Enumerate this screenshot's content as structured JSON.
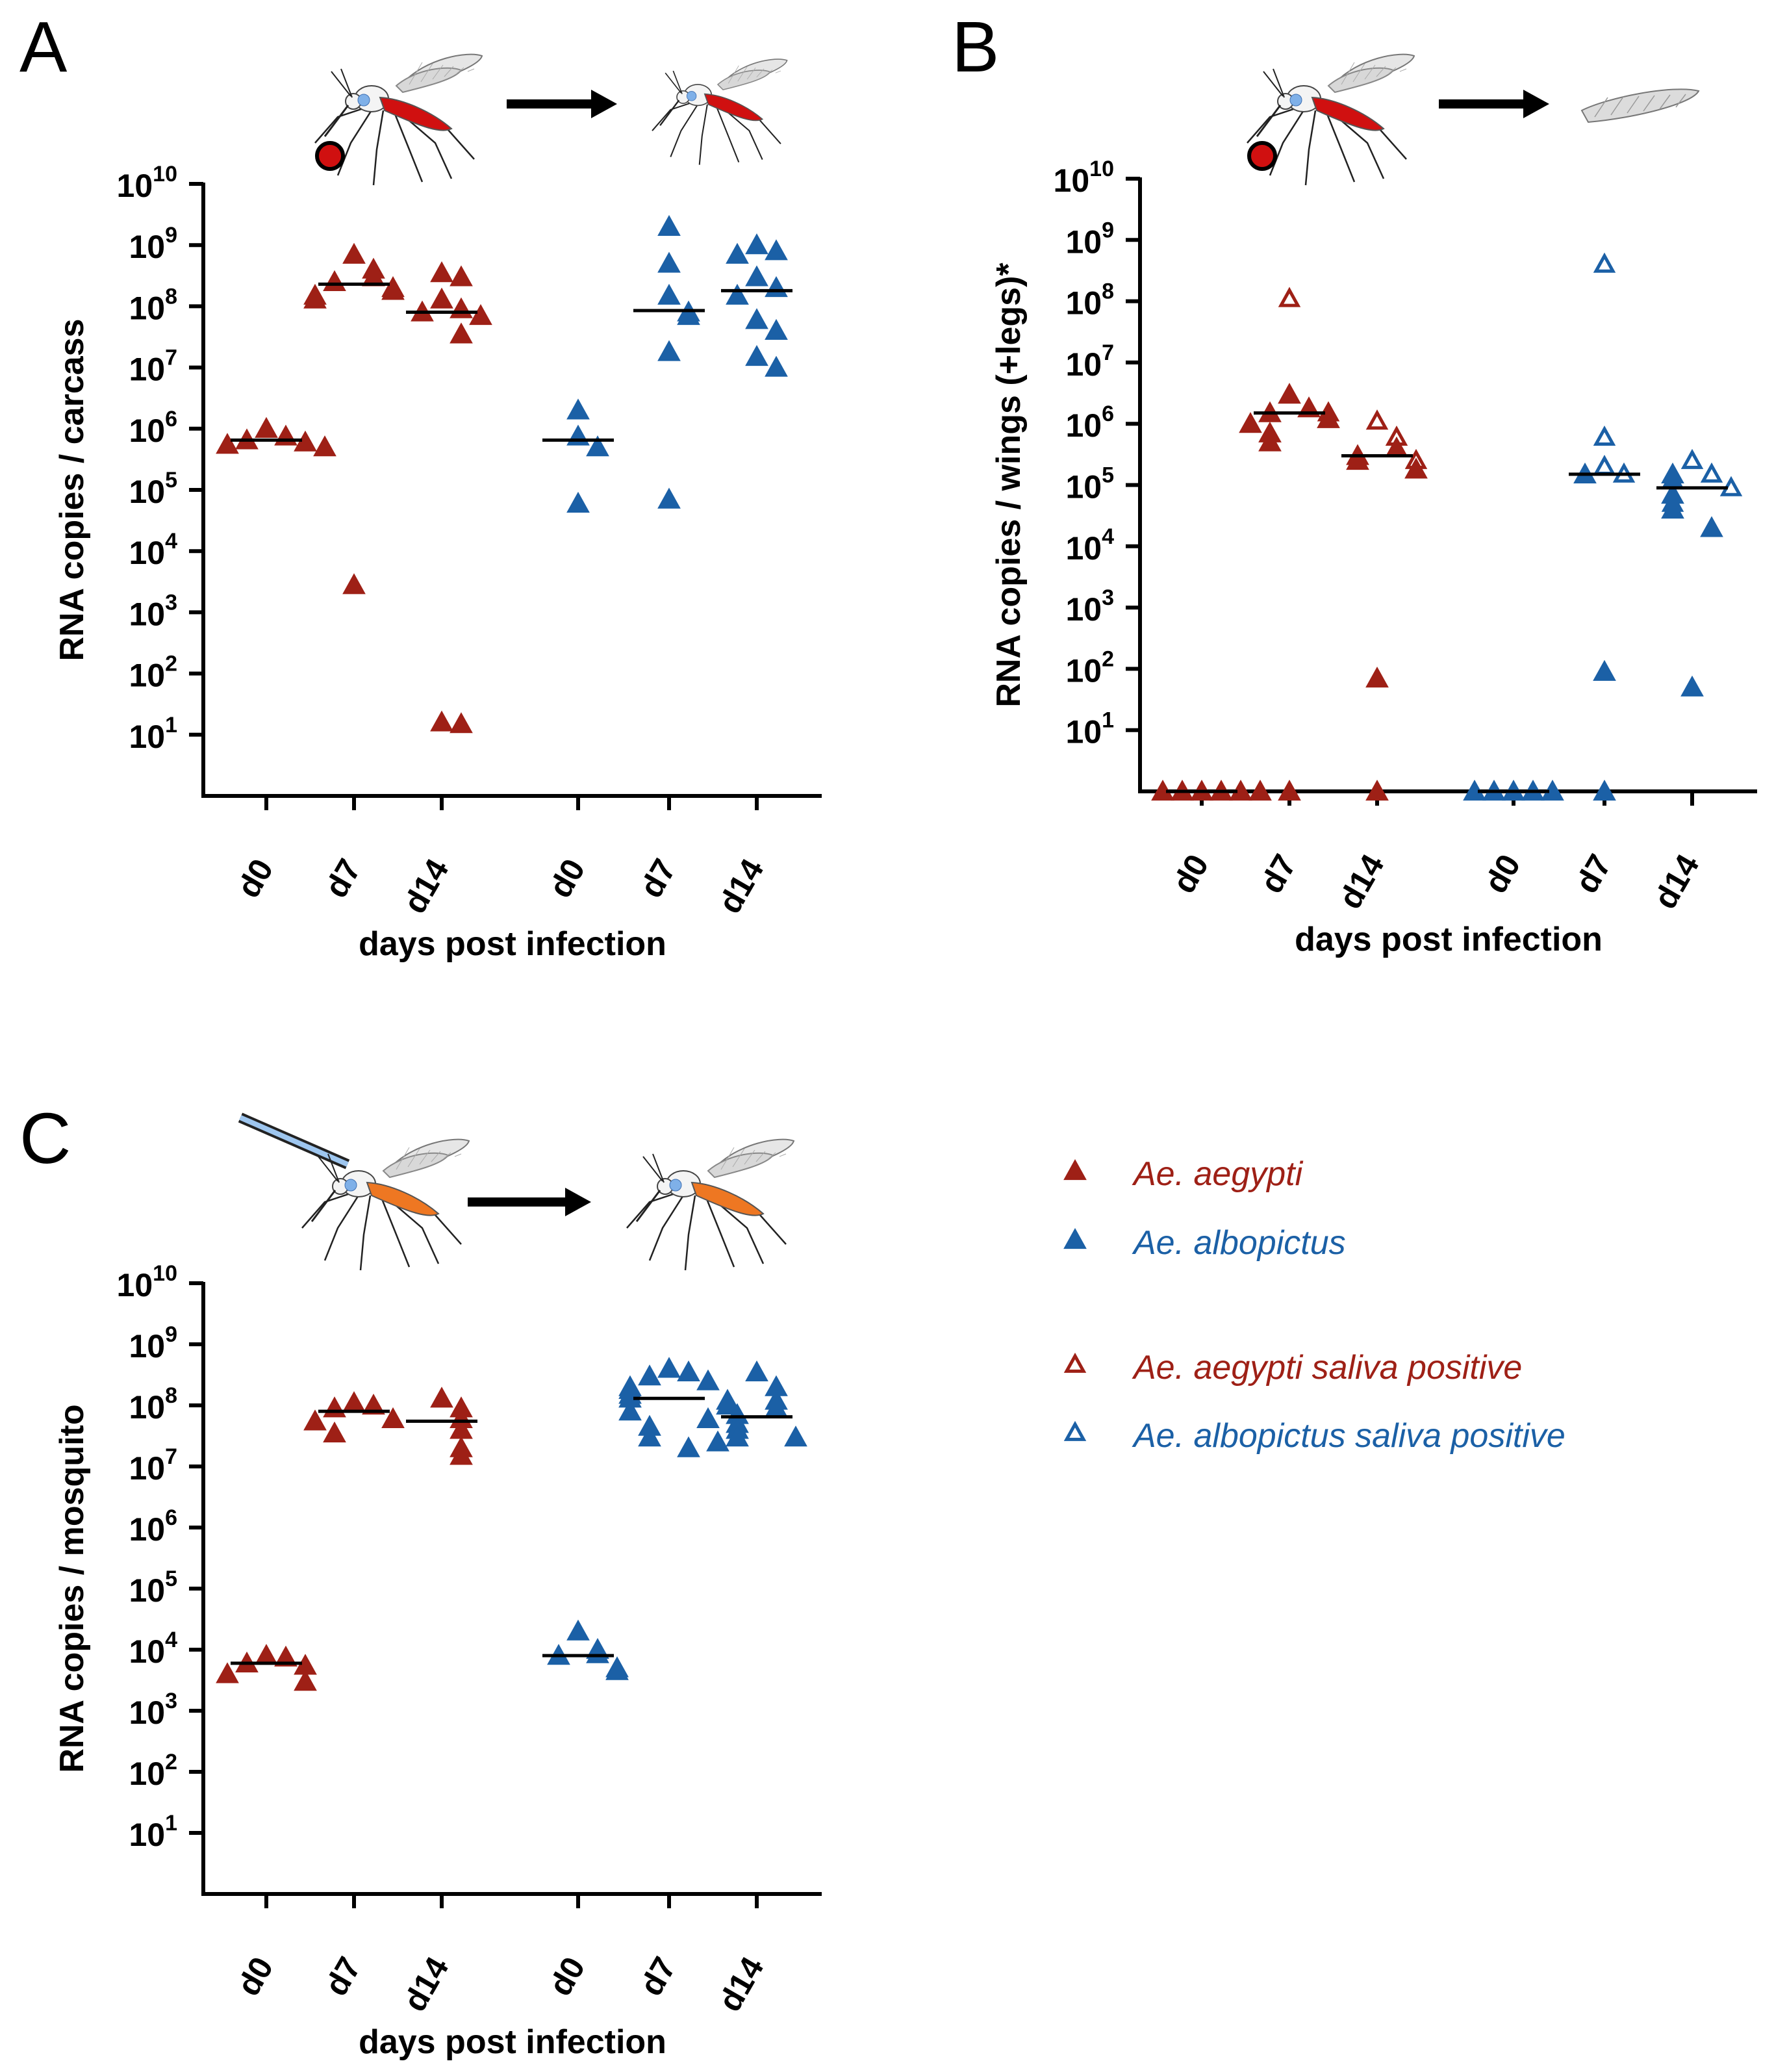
{
  "colors": {
    "aegypti": "#9e2016",
    "albopictus": "#1b60a6",
    "axis": "#000000",
    "median": "#000000",
    "blood": "#d01010",
    "injection_orange": "#ee7722"
  },
  "legend": {
    "items": [
      {
        "label": "Ae. aegypti",
        "species": "aegypti",
        "filled": true
      },
      {
        "label": "Ae. albopictus",
        "species": "albopictus",
        "filled": true
      },
      {
        "label": "Ae. aegypti saliva positive",
        "species": "aegypti",
        "filled": false
      },
      {
        "label": "Ae. albopictus saliva positive",
        "species": "albopictus",
        "filled": false
      }
    ]
  },
  "chart_data": [
    {
      "type": "scatter",
      "panel_label": "A",
      "xlabel": "days post infection",
      "ylabel": "RNA copies / carcass",
      "y_scale": "log10",
      "ylim": [
        1,
        10000000000.0
      ],
      "y_tick_base": "10",
      "y_tick_exponents": [
        "1",
        "2",
        "3",
        "4",
        "5",
        "6",
        "7",
        "8",
        "9",
        "10"
      ],
      "illustration": "bloodfed-to-carcass",
      "groups": [
        {
          "x_label": "d0",
          "species": "aegypti",
          "median": 650000.0,
          "points": [
            {
              "y": 1000000.0,
              "f": 1
            },
            {
              "y": 750000.0,
              "f": 1
            },
            {
              "y": 650000.0,
              "f": 1
            },
            {
              "y": 600000.0,
              "f": 1
            },
            {
              "y": 550000.0,
              "f": 1
            },
            {
              "y": 500000.0,
              "f": 1
            }
          ]
        },
        {
          "x_label": "d7",
          "species": "aegypti",
          "median": 230000000.0,
          "points": [
            {
              "y": 700000000.0,
              "f": 1
            },
            {
              "y": 400000000.0,
              "f": 1
            },
            {
              "y": 300000000.0,
              "f": 1
            },
            {
              "y": 250000000.0,
              "f": 1
            },
            {
              "y": 200000000.0,
              "f": 1
            },
            {
              "y": 180000000.0,
              "f": 1
            },
            {
              "y": 150000000.0,
              "f": 1
            },
            {
              "y": 130000000.0,
              "f": 1
            },
            {
              "y": 2800.0,
              "f": 1
            }
          ]
        },
        {
          "x_label": "d14",
          "species": "aegypti",
          "median": 80000000.0,
          "points": [
            {
              "y": 350000000.0,
              "f": 1
            },
            {
              "y": 300000000.0,
              "f": 1
            },
            {
              "y": 130000000.0,
              "f": 1
            },
            {
              "y": 90000000.0,
              "f": 1
            },
            {
              "y": 80000000.0,
              "f": 1
            },
            {
              "y": 70000000.0,
              "f": 1
            },
            {
              "y": 35000000.0,
              "f": 1
            },
            {
              "y": 16,
              "f": 1
            },
            {
              "y": 15,
              "f": 1
            }
          ]
        },
        {
          "x_label": "d0",
          "species": "albopictus",
          "median": 650000.0,
          "points": [
            {
              "y": 2000000.0,
              "f": 1
            },
            {
              "y": 750000.0,
              "f": 1
            },
            {
              "y": 500000.0,
              "f": 1
            },
            {
              "y": 60000.0,
              "f": 1
            }
          ]
        },
        {
          "x_label": "d7",
          "species": "albopictus",
          "median": 85000000.0,
          "points": [
            {
              "y": 2000000000.0,
              "f": 1
            },
            {
              "y": 500000000.0,
              "f": 1
            },
            {
              "y": 150000000.0,
              "f": 1
            },
            {
              "y": 80000000.0,
              "f": 1
            },
            {
              "y": 70000000.0,
              "f": 1
            },
            {
              "y": 18000000.0,
              "f": 1
            },
            {
              "y": 70000.0,
              "f": 1
            }
          ]
        },
        {
          "x_label": "d14",
          "species": "albopictus",
          "median": 180000000.0,
          "points": [
            {
              "y": 1000000000.0,
              "f": 1
            },
            {
              "y": 800000000.0,
              "f": 1
            },
            {
              "y": 700000000.0,
              "f": 1
            },
            {
              "y": 300000000.0,
              "f": 1
            },
            {
              "y": 200000000.0,
              "f": 1
            },
            {
              "y": 150000000.0,
              "f": 1
            },
            {
              "y": 60000000.0,
              "f": 1
            },
            {
              "y": 40000000.0,
              "f": 1
            },
            {
              "y": 15000000.0,
              "f": 1
            },
            {
              "y": 10000000.0,
              "f": 1
            }
          ]
        }
      ]
    },
    {
      "type": "scatter",
      "panel_label": "B",
      "xlabel": "days post infection",
      "ylabel": "RNA copies / wings (+legs)*",
      "y_scale": "log10",
      "ylim": [
        1,
        10000000000.0
      ],
      "y_tick_base": "10",
      "y_tick_exponents": [
        "1",
        "2",
        "3",
        "4",
        "5",
        "6",
        "7",
        "8",
        "9",
        "10"
      ],
      "illustration": "bloodfed-to-wing",
      "groups": [
        {
          "x_label": "d0",
          "species": "aegypti",
          "median": 1,
          "points": [
            {
              "y": 1,
              "f": 1
            },
            {
              "y": 1,
              "f": 1
            },
            {
              "y": 1,
              "f": 1
            },
            {
              "y": 1,
              "f": 1
            },
            {
              "y": 1,
              "f": 1
            },
            {
              "y": 1,
              "f": 1
            }
          ]
        },
        {
          "x_label": "d7",
          "species": "aegypti",
          "median": 1500000.0,
          "points": [
            {
              "y": 110000000.0,
              "f": 0
            },
            {
              "y": 3000000.0,
              "f": 1
            },
            {
              "y": 1800000.0,
              "f": 1
            },
            {
              "y": 1500000.0,
              "f": 1
            },
            {
              "y": 1500000.0,
              "f": 0
            },
            {
              "y": 1200000.0,
              "f": 1
            },
            {
              "y": 1000000.0,
              "f": 1
            },
            {
              "y": 700000.0,
              "f": 1
            },
            {
              "y": 500000.0,
              "f": 1
            },
            {
              "y": 1,
              "f": 1
            }
          ]
        },
        {
          "x_label": "d14",
          "species": "aegypti",
          "median": 300000.0,
          "points": [
            {
              "y": 1100000.0,
              "f": 0
            },
            {
              "y": 600000.0,
              "f": 0
            },
            {
              "y": 400000.0,
              "f": 1
            },
            {
              "y": 300000.0,
              "f": 1
            },
            {
              "y": 250000.0,
              "f": 1
            },
            {
              "y": 250000.0,
              "f": 0
            },
            {
              "y": 180000.0,
              "f": 1
            },
            {
              "y": 70,
              "f": 1
            },
            {
              "y": 1,
              "f": 1
            }
          ]
        },
        {
          "x_label": "d0",
          "species": "albopictus",
          "median": 1,
          "points": [
            {
              "y": 1,
              "f": 1
            },
            {
              "y": 1,
              "f": 1
            },
            {
              "y": 1,
              "f": 1
            },
            {
              "y": 1,
              "f": 1
            },
            {
              "y": 1,
              "f": 1
            }
          ]
        },
        {
          "x_label": "d7",
          "species": "albopictus",
          "median": 150000.0,
          "points": [
            {
              "y": 400000000.0,
              "f": 0
            },
            {
              "y": 600000.0,
              "f": 0
            },
            {
              "y": 200000.0,
              "f": 0
            },
            {
              "y": 150000.0,
              "f": 0
            },
            {
              "y": 150000.0,
              "f": 1
            },
            {
              "y": 90,
              "f": 1
            },
            {
              "y": 1,
              "f": 1
            }
          ]
        },
        {
          "x_label": "d14",
          "species": "albopictus",
          "median": 90000.0,
          "points": [
            {
              "y": 250000.0,
              "f": 0
            },
            {
              "y": 150000.0,
              "f": 0
            },
            {
              "y": 150000.0,
              "f": 1
            },
            {
              "y": 120000.0,
              "f": 1
            },
            {
              "y": 90000.0,
              "f": 0
            },
            {
              "y": 70000.0,
              "f": 1
            },
            {
              "y": 50000.0,
              "f": 0
            },
            {
              "y": 40000.0,
              "f": 1
            },
            {
              "y": 20000.0,
              "f": 1
            },
            {
              "y": 50,
              "f": 1
            }
          ]
        }
      ]
    },
    {
      "type": "scatter",
      "panel_label": "C",
      "xlabel": "days post infection",
      "ylabel": "RNA copies / mosquito",
      "y_scale": "log10",
      "ylim": [
        1,
        10000000000.0
      ],
      "y_tick_base": "10",
      "y_tick_exponents": [
        "1",
        "2",
        "3",
        "4",
        "5",
        "6",
        "7",
        "8",
        "9",
        "10"
      ],
      "illustration": "injected-to-whole",
      "groups": [
        {
          "x_label": "d0",
          "species": "aegypti",
          "median": 6000.0,
          "points": [
            {
              "y": 8000.0,
              "f": 1
            },
            {
              "y": 7500.0,
              "f": 1
            },
            {
              "y": 6000.0,
              "f": 1
            },
            {
              "y": 5500.0,
              "f": 1
            },
            {
              "y": 4000.0,
              "f": 1
            },
            {
              "y": 3000.0,
              "f": 1
            }
          ]
        },
        {
          "x_label": "d7",
          "species": "aegypti",
          "median": 80000000.0,
          "points": [
            {
              "y": 110000000.0,
              "f": 1
            },
            {
              "y": 100000000.0,
              "f": 1
            },
            {
              "y": 90000000.0,
              "f": 1
            },
            {
              "y": 60000000.0,
              "f": 1
            },
            {
              "y": 55000000.0,
              "f": 1
            },
            {
              "y": 35000000.0,
              "f": 1
            }
          ]
        },
        {
          "x_label": "d14",
          "species": "aegypti",
          "median": 55000000.0,
          "points": [
            {
              "y": 130000000.0,
              "f": 1
            },
            {
              "y": 90000000.0,
              "f": 1
            },
            {
              "y": 60000000.0,
              "f": 1
            },
            {
              "y": 40000000.0,
              "f": 1
            },
            {
              "y": 20000000.0,
              "f": 1
            },
            {
              "y": 15000000.0,
              "f": 1
            }
          ]
        },
        {
          "x_label": "d0",
          "species": "albopictus",
          "median": 8000.0,
          "points": [
            {
              "y": 20000.0,
              "f": 1
            },
            {
              "y": 10000.0,
              "f": 1
            },
            {
              "y": 8500.0,
              "f": 1
            },
            {
              "y": 8000.0,
              "f": 1
            },
            {
              "y": 5000.0,
              "f": 1
            },
            {
              "y": 4500.0,
              "f": 1
            }
          ]
        },
        {
          "x_label": "d7",
          "species": "albopictus",
          "median": 130000000.0,
          "points": [
            {
              "y": 400000000.0,
              "f": 1
            },
            {
              "y": 350000000.0,
              "f": 1
            },
            {
              "y": 300000000.0,
              "f": 1
            },
            {
              "y": 250000000.0,
              "f": 1
            },
            {
              "y": 200000000.0,
              "f": 1
            },
            {
              "y": 180000000.0,
              "f": 1
            },
            {
              "y": 150000000.0,
              "f": 1
            },
            {
              "y": 130000000.0,
              "f": 1
            },
            {
              "y": 120000000.0,
              "f": 1
            },
            {
              "y": 100000000.0,
              "f": 1
            },
            {
              "y": 80000000.0,
              "f": 1
            },
            {
              "y": 60000000.0,
              "f": 1
            },
            {
              "y": 45000000.0,
              "f": 1
            },
            {
              "y": 30000000.0,
              "f": 1
            },
            {
              "y": 20000000.0,
              "f": 1
            }
          ]
        },
        {
          "x_label": "d14",
          "species": "albopictus",
          "median": 65000000.0,
          "points": [
            {
              "y": 350000000.0,
              "f": 1
            },
            {
              "y": 200000000.0,
              "f": 1
            },
            {
              "y": 120000000.0,
              "f": 1
            },
            {
              "y": 90000000.0,
              "f": 1
            },
            {
              "y": 70000000.0,
              "f": 1
            },
            {
              "y": 50000000.0,
              "f": 1
            },
            {
              "y": 40000000.0,
              "f": 1
            },
            {
              "y": 30000000.0,
              "f": 1
            },
            {
              "y": 30000000.0,
              "f": 1
            },
            {
              "y": 25000000.0,
              "f": 1
            }
          ]
        }
      ]
    }
  ]
}
